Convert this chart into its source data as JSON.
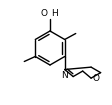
{
  "bg_color": "#ffffff",
  "line_color": "#000000",
  "line_width": 1.0,
  "font_size": 6.5,
  "figsize": [
    1.13,
    1.05
  ],
  "dpi": 100,
  "xlim": [
    0,
    113
  ],
  "ylim": [
    0,
    105
  ]
}
